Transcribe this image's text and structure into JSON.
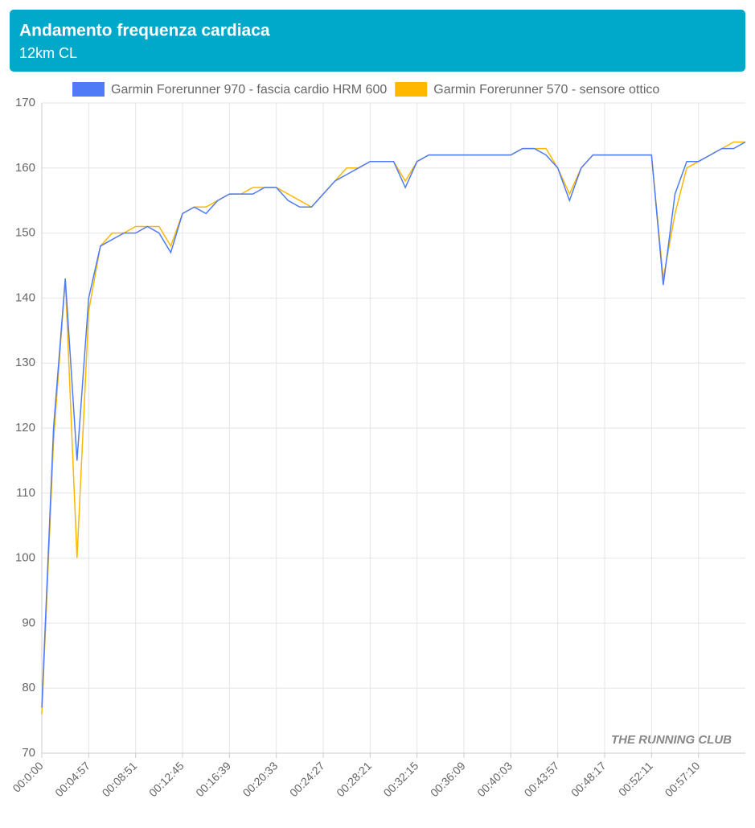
{
  "chart_data": {
    "type": "line",
    "title": "Andamento frequenza cardiaca",
    "subtitle": "12km CL",
    "watermark": "THE RUNNING CLUB",
    "categories": [
      "00:0:00",
      null,
      null,
      null,
      "00:04:57",
      null,
      null,
      null,
      "00:08:51",
      null,
      null,
      null,
      "00:12:45",
      null,
      null,
      null,
      "00:16:39",
      null,
      null,
      null,
      "00:20:33",
      null,
      null,
      null,
      "00:24:27",
      null,
      null,
      null,
      "00:28:21",
      null,
      null,
      null,
      "00:32:15",
      null,
      null,
      null,
      "00:36:09",
      null,
      null,
      null,
      "00:40:03",
      null,
      null,
      null,
      "00:43:57",
      null,
      null,
      null,
      "00:48:17",
      null,
      null,
      null,
      "00:52:11",
      null,
      null,
      null,
      "00:57:10",
      null,
      null,
      null,
      null
    ],
    "series": [
      {
        "name": "Garmin Forerunner 970 - fascia cardio HRM 600",
        "color": "#4f7cf6",
        "values": [
          77,
          120,
          143,
          115,
          140,
          148,
          149,
          150,
          150,
          151,
          150,
          147,
          153,
          154,
          153,
          155,
          156,
          156,
          156,
          157,
          157,
          155,
          154,
          154,
          156,
          158,
          159,
          160,
          161,
          161,
          161,
          157,
          161,
          162,
          162,
          162,
          162,
          162,
          162,
          162,
          162,
          163,
          163,
          162,
          160,
          155,
          160,
          162,
          162,
          162,
          162,
          162,
          162,
          142,
          156,
          161,
          161,
          162,
          163,
          163,
          164
        ]
      },
      {
        "name": "Garmin Forerunner 570 - sensore ottico",
        "color": "#ffb700",
        "values": [
          76,
          118,
          143,
          100,
          138,
          148,
          150,
          150,
          151,
          151,
          151,
          148,
          153,
          154,
          154,
          155,
          156,
          156,
          157,
          157,
          157,
          156,
          155,
          154,
          156,
          158,
          160,
          160,
          161,
          161,
          161,
          158,
          161,
          162,
          162,
          162,
          162,
          162,
          162,
          162,
          162,
          163,
          163,
          163,
          160,
          156,
          160,
          162,
          162,
          162,
          162,
          162,
          162,
          143,
          153,
          160,
          161,
          162,
          163,
          164,
          164
        ]
      }
    ],
    "ylim": [
      70,
      170
    ],
    "yticks": [
      70,
      80,
      90,
      100,
      110,
      120,
      130,
      140,
      150,
      160,
      170
    ],
    "grid": true
  }
}
